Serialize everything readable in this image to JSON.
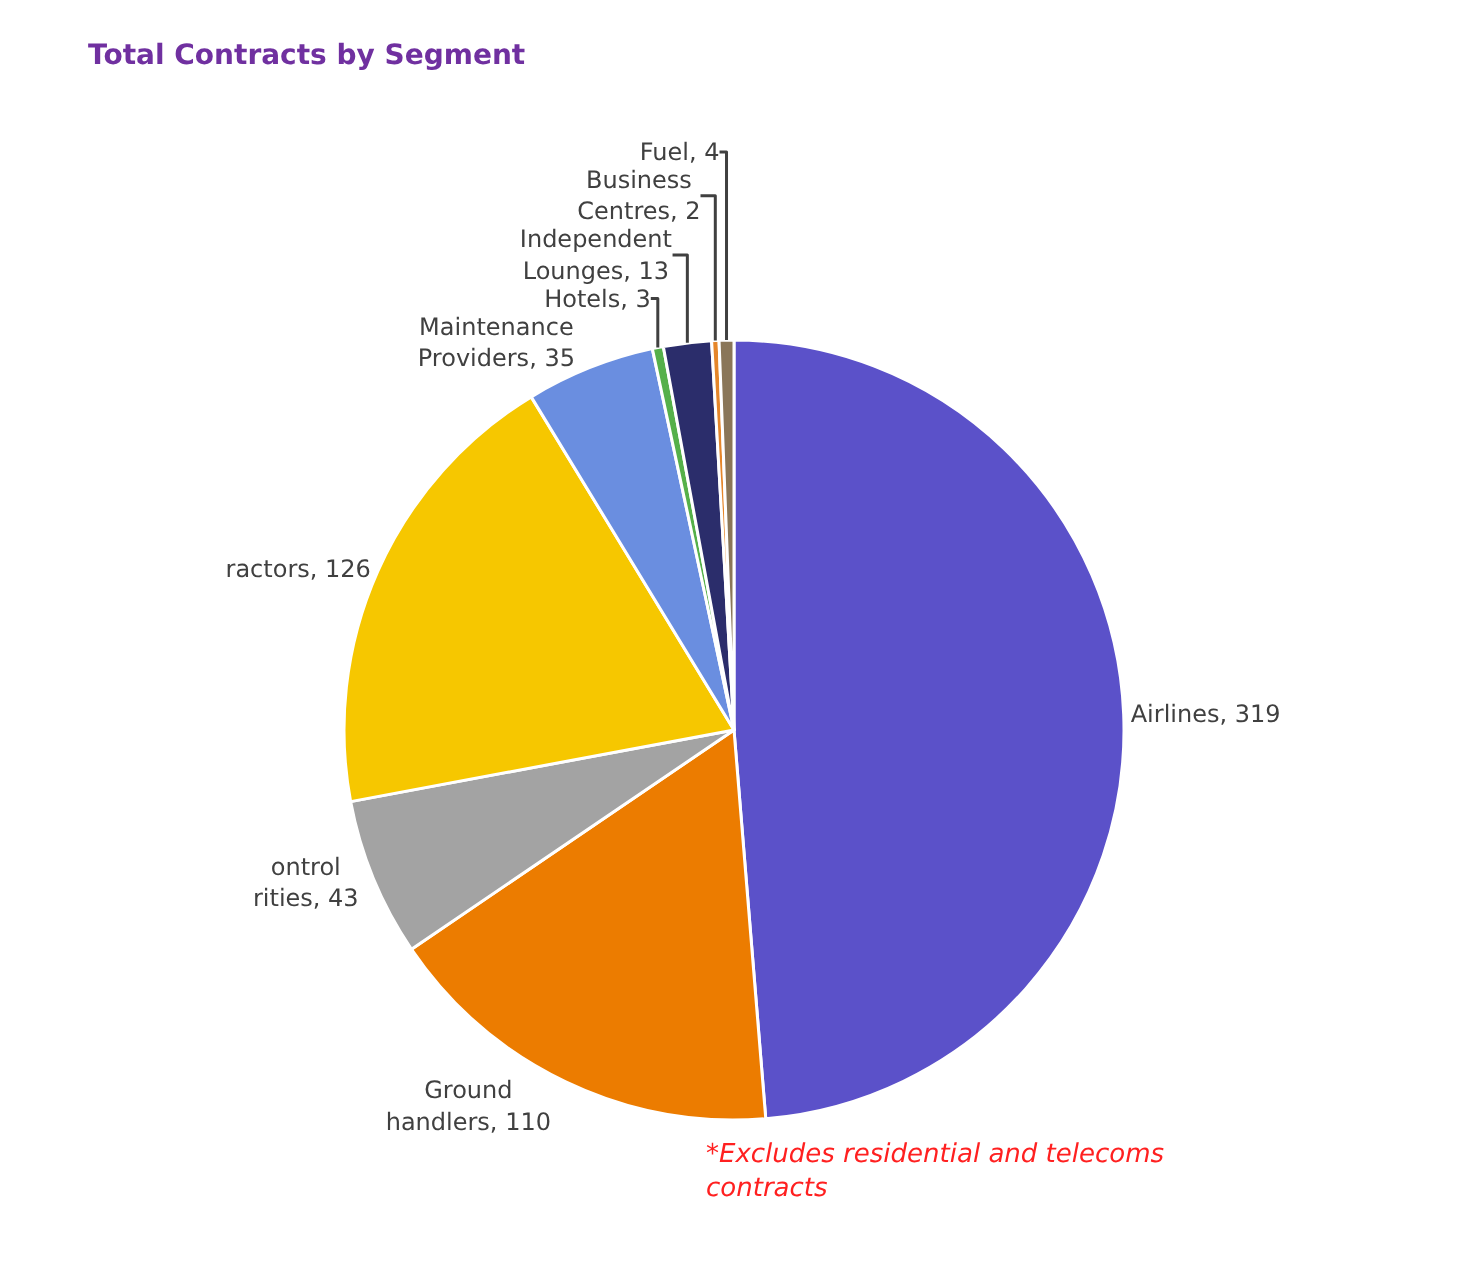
{
  "chart_data": {
    "type": "pie",
    "title": "Total Contracts by Segment",
    "categories": [
      "Airlines",
      "Ground handlers",
      "ontrol rities",
      "ractors",
      "Maintenance Providers",
      "Hotels",
      "Independent Lounges",
      "Business Centres",
      "Fuel"
    ],
    "values": [
      319,
      110,
      43,
      126,
      35,
      3,
      13,
      2,
      4
    ],
    "colors": [
      "#5b51c9",
      "#ec7c00",
      "#a3a3a3",
      "#f6c700",
      "#6a8ee0",
      "#55b04a",
      "#2b2d6b",
      "#e5862a",
      "#8a7658"
    ],
    "value_labels": [
      ", 319",
      ", 110",
      ", 43",
      ", 126",
      ", 35",
      ", 3",
      ", 13",
      ", 2",
      ", 4"
    ],
    "legend": false,
    "annotations": [
      "*Excludes residential and telecoms contracts"
    ]
  }
}
